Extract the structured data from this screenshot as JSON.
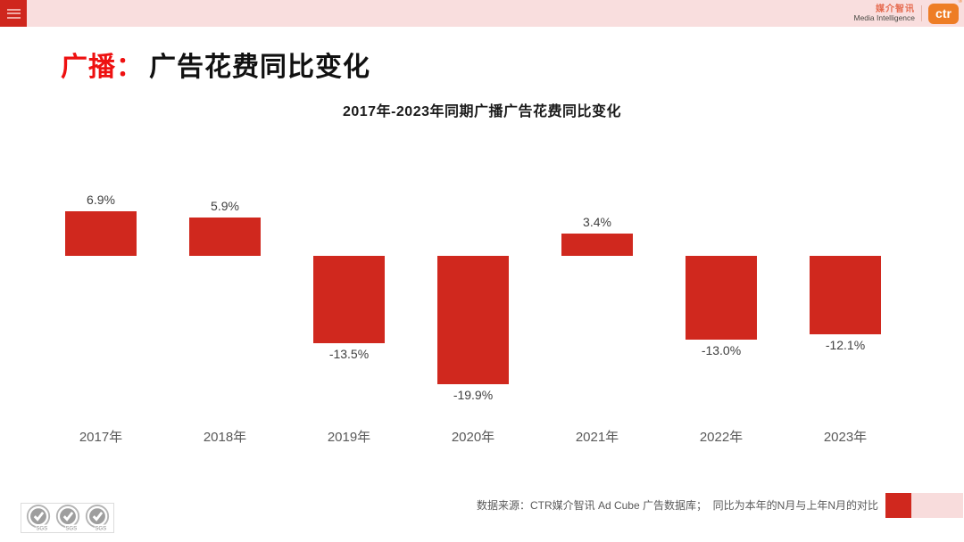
{
  "header": {
    "brand_cn": "媒介智讯",
    "brand_en": "Media Intelligence",
    "logo_text": "ctr",
    "logo_reg": "®",
    "bar_color": "#f9dede",
    "accent_color": "#cf261d"
  },
  "title": {
    "category": "广播：",
    "rest": "广告花费同比变化"
  },
  "chart_data": {
    "type": "bar",
    "title": "2017年-2023年同期广播广告花费同比变化",
    "categories": [
      "2017年",
      "2018年",
      "2019年",
      "2020年",
      "2021年",
      "2022年",
      "2023年"
    ],
    "values": [
      6.9,
      5.9,
      -13.5,
      -19.9,
      3.4,
      -13.0,
      -12.1
    ],
    "labels": [
      "6.9%",
      "5.9%",
      "-13.5%",
      "-19.9%",
      "3.4%",
      "-13.0%",
      "-12.1%"
    ],
    "bar_color": "#d0281e",
    "xlabel": "",
    "ylabel": "",
    "ylim": [
      -22,
      10
    ],
    "grid": false,
    "legend": false,
    "value_label_position": "outside-end"
  },
  "footer": {
    "source": "数据来源：CTR媒介智讯 Ad Cube 广告数据库；  同比为本年的N月与上年N月的对比",
    "sgs_label": "SGS"
  }
}
